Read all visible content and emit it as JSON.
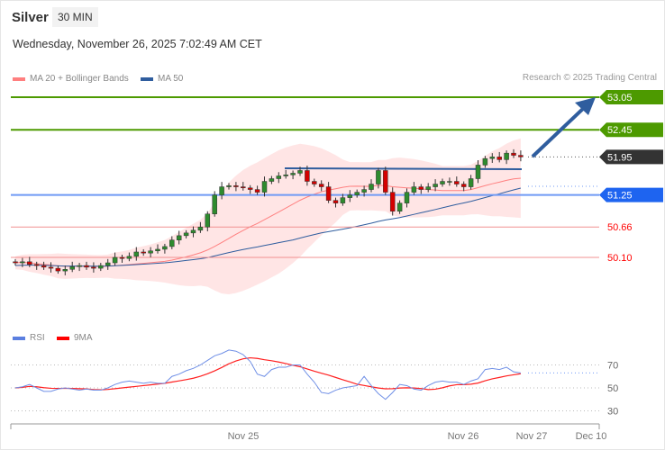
{
  "header": {
    "instrument": "Silver",
    "timeframe": "30 MIN",
    "datetime": "Wednesday, November 26, 2025 7:02:49 AM CET"
  },
  "legend": {
    "ma20": "MA 20 + Bollinger Bands",
    "ma50": "MA 50",
    "ma20_color": "#ff7f7f",
    "ma50_color": "#2f5d9e"
  },
  "credit": "Research © 2025 Trading Central",
  "rsi_legend": {
    "rsi": "RSI",
    "ma9": "9MA",
    "rsi_color": "#5b7fe0",
    "ma9_color": "#ff0000"
  },
  "chart_data": {
    "type": "candlestick",
    "price_levels": [
      {
        "value": "53.05",
        "kind": "target",
        "color": "#4d9a00"
      },
      {
        "value": "52.45",
        "kind": "resistance",
        "color": "#4d9a00"
      },
      {
        "value": "51.95",
        "kind": "last",
        "color": "#333333"
      },
      {
        "value": "51.25",
        "kind": "pivot",
        "color": "#1e64f0"
      },
      {
        "value": "50.66",
        "kind": "support",
        "color": "#ff0000"
      },
      {
        "value": "50.10",
        "kind": "support",
        "color": "#ff0000"
      }
    ],
    "closes": [
      50.0,
      50.02,
      49.97,
      49.95,
      49.92,
      49.9,
      49.85,
      49.88,
      49.93,
      49.95,
      49.92,
      49.9,
      49.95,
      50.0,
      50.1,
      50.08,
      50.12,
      50.2,
      50.18,
      50.22,
      50.25,
      50.3,
      50.42,
      50.5,
      50.55,
      50.6,
      50.66,
      50.9,
      51.25,
      51.4,
      51.42,
      51.4,
      51.38,
      51.35,
      51.3,
      51.5,
      51.55,
      51.6,
      51.62,
      51.65,
      51.7,
      51.5,
      51.45,
      51.4,
      51.15,
      51.1,
      51.2,
      51.25,
      51.3,
      51.35,
      51.45,
      51.7,
      51.3,
      50.95,
      51.1,
      51.3,
      51.4,
      51.35,
      51.4,
      51.45,
      51.5,
      51.5,
      51.45,
      51.4,
      51.55,
      51.8,
      51.92,
      51.95,
      51.9,
      52.02,
      51.98,
      51.95
    ],
    "rsi": [
      50,
      51,
      53,
      50,
      47,
      47,
      49,
      50,
      49,
      48,
      49,
      48,
      48,
      50,
      53,
      55,
      56,
      55,
      54,
      55,
      54,
      54,
      60,
      62,
      65,
      67,
      70,
      74,
      78,
      80,
      83,
      82,
      79,
      73,
      62,
      60,
      66,
      68,
      68,
      70,
      70,
      62,
      55,
      46,
      45,
      48,
      50,
      51,
      52,
      60,
      52,
      45,
      40,
      46,
      53,
      52,
      49,
      48,
      52,
      55,
      56,
      55,
      55,
      53,
      56,
      58,
      66,
      67,
      66,
      68,
      64,
      63
    ],
    "rsi_ticks": [
      "70",
      "50",
      "30"
    ],
    "x_ticks": [
      "Nov 25",
      "Nov 26",
      "Nov 27",
      "Dec 10"
    ]
  }
}
